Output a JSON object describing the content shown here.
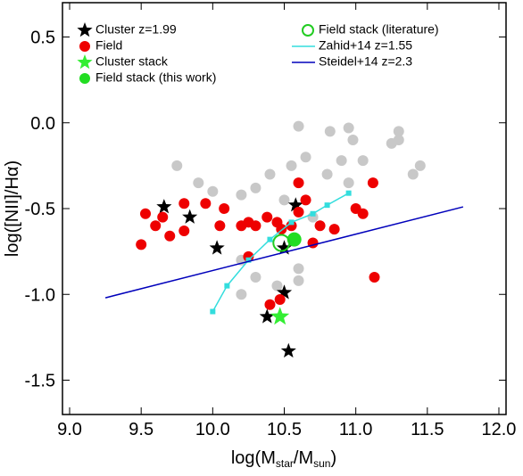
{
  "chart_data": {
    "type": "scatter",
    "xlabel": [
      "log(M",
      "star",
      "/M",
      "sun",
      ")"
    ],
    "ylabel": "log([NII]/Hα)",
    "xlim": [
      8.95,
      12.05
    ],
    "ylim": [
      -1.7,
      0.7
    ],
    "xticks": [
      {
        "value": 9,
        "label": "9.0"
      },
      9.5,
      {
        "value": 10,
        "label": "10.0"
      },
      10.5,
      {
        "value": 11,
        "label": "11.0"
      },
      11.5,
      {
        "value": 12,
        "label": "12.0"
      }
    ],
    "yticks": [
      0.5,
      {
        "value": 0,
        "label": "0.0"
      },
      -0.5,
      {
        "value": -1,
        "label": "-1.0"
      },
      -1.5
    ],
    "series": [
      {
        "marker": "circle",
        "color": "#c8c8c8",
        "x": [
          10.6,
          10.82,
          10.95,
          10.98,
          11.25,
          11.3,
          11.3,
          11.05,
          11.4,
          11.45,
          10.55,
          10.4,
          10.8,
          10.95,
          10.9,
          10.2,
          10.0,
          10.3,
          9.9,
          9.75,
          10.5,
          10.65,
          10.2,
          10.3,
          10.2,
          10.6,
          10.45,
          10.7,
          10.6
        ],
        "values": [
          -0.02,
          -0.05,
          -0.03,
          -0.1,
          -0.12,
          -0.1,
          -0.05,
          -0.22,
          -0.3,
          -0.25,
          -0.25,
          -0.3,
          -0.3,
          -0.35,
          -0.22,
          -0.42,
          -0.4,
          -0.38,
          -0.35,
          -0.25,
          -0.45,
          -0.2,
          -0.8,
          -0.9,
          -1.0,
          -0.85,
          -0.95,
          -0.55,
          -0.92
        ]
      },
      {
        "name": "Cluster z=1.99",
        "marker": "star",
        "color": "#000000",
        "x": [
          9.66,
          9.84,
          10.03,
          10.5,
          10.58,
          10.38,
          10.5,
          10.53
        ],
        "values": [
          -0.49,
          -0.55,
          -0.73,
          -0.73,
          -0.48,
          -1.13,
          -0.99,
          -1.33
        ]
      },
      {
        "name": "Field",
        "marker": "circle",
        "color": "#ee0000",
        "x": [
          9.5,
          9.53,
          9.6,
          9.65,
          9.7,
          9.8,
          9.8,
          9.95,
          10.05,
          10.08,
          10.2,
          10.25,
          10.3,
          10.38,
          10.45,
          10.55,
          10.6,
          10.65,
          10.7,
          10.75,
          10.85,
          11.0,
          11.05,
          11.12,
          11.13,
          10.47,
          10.4,
          10.25,
          10.6,
          10.48
        ],
        "values": [
          -0.71,
          -0.53,
          -0.6,
          -0.55,
          -0.66,
          -0.47,
          -0.63,
          -0.47,
          -0.6,
          -0.5,
          -0.6,
          -0.58,
          -0.6,
          -0.55,
          -0.58,
          -0.6,
          -0.52,
          -0.45,
          -0.7,
          -0.6,
          -0.62,
          -0.5,
          -0.53,
          -0.35,
          -0.9,
          -1.03,
          -1.06,
          -0.78,
          -0.35,
          -0.62
        ]
      },
      {
        "name": "Cluster stack",
        "marker": "star",
        "color": "#33ee33",
        "x": [
          10.47
        ],
        "values": [
          -1.13
        ]
      },
      {
        "name": "Field stack (this work)",
        "marker": "circle",
        "color": "#22dd22",
        "x": [
          10.57
        ],
        "values": [
          -0.68
        ]
      },
      {
        "name": "Field stack (literature)",
        "marker": "open",
        "color": "#22cc22",
        "x": [
          10.48
        ],
        "values": [
          -0.7
        ]
      },
      {
        "name": "Zahid+14 z=1.55",
        "marker": "line",
        "color": "#33dddd",
        "x": [
          10.0,
          10.1,
          10.25,
          10.4,
          10.55,
          10.7,
          10.8,
          10.95
        ],
        "values": [
          -1.1,
          -0.95,
          -0.8,
          -0.68,
          -0.58,
          -0.53,
          -0.48,
          -0.41
        ]
      },
      {
        "name": "Steidel+14 z=2.3",
        "marker": "line",
        "color": "#0000bb",
        "x": [
          9.25,
          11.75
        ],
        "values": [
          -1.02,
          -0.49
        ]
      }
    ]
  }
}
